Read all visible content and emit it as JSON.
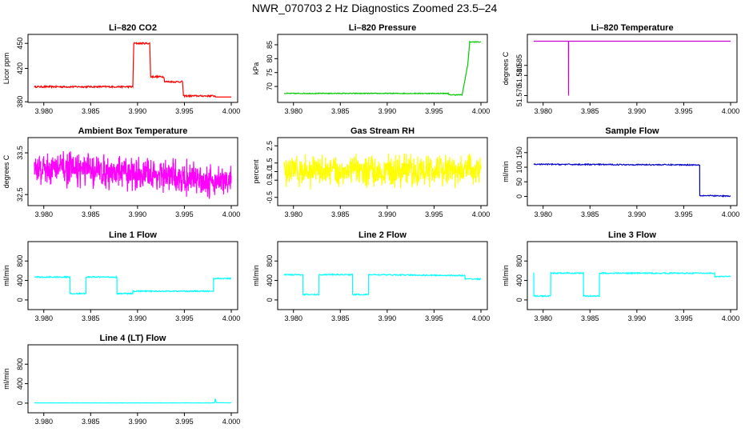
{
  "title": "NWR_070703  2 Hz Diagnostics Zoomed 23.5–24",
  "chart_data": [
    {
      "id": "co2",
      "type": "line",
      "title": "Li–820 CO2",
      "ylabel": "Licor ppm",
      "color": "#ff0000",
      "xlim": [
        3.979,
        4.0
      ],
      "ylim": [
        385,
        455
      ],
      "xticks": [
        "3.980",
        "3.985",
        "3.990",
        "3.995",
        "4.000"
      ],
      "yticks": [
        "380",
        "420",
        "450"
      ],
      "x": [
        3.979,
        3.9895,
        3.9896,
        3.9913,
        3.9914,
        3.9928,
        3.9929,
        3.9948,
        3.9949,
        3.9983,
        3.9984,
        4.0
      ],
      "y": [
        398,
        398,
        450,
        450,
        410,
        410,
        404,
        404,
        387,
        387,
        383,
        383
      ],
      "noise": 1.0
    },
    {
      "id": "pressure",
      "type": "line",
      "title": "Li–820 Pressure",
      "ylabel": "kPa",
      "color": "#00cc00",
      "xlim": [
        3.979,
        4.0
      ],
      "ylim": [
        66,
        87
      ],
      "xticks": [
        "3.980",
        "3.985",
        "3.990",
        "3.995",
        "4.000"
      ],
      "yticks": [
        "70",
        "75",
        "80",
        "85"
      ],
      "x": [
        3.979,
        3.9965,
        3.9966,
        3.998,
        3.9986,
        3.9988,
        4.0
      ],
      "y": [
        67.5,
        67.5,
        67,
        67,
        78,
        86,
        86
      ],
      "noise": 0.15
    },
    {
      "id": "temperature",
      "type": "line",
      "title": "Li–820 Temperature",
      "ylabel": "degrees C",
      "color": "#cc00cc",
      "xlim": [
        3.979,
        4.0
      ],
      "ylim": [
        51.569,
        51.598
      ],
      "xticks": [
        "3.980",
        "3.985",
        "3.990",
        "3.995",
        "4.000"
      ],
      "yticks": [
        "51.570",
        "51.580",
        "51.585"
      ],
      "x": [
        3.979,
        3.9827,
        3.98271,
        3.98272,
        4.0
      ],
      "y": [
        51.597,
        51.597,
        51.57,
        51.597,
        51.597
      ],
      "noise": 0
    },
    {
      "id": "ambient",
      "type": "line",
      "title": "Ambient Box Temperature",
      "ylabel": "degrees C",
      "color": "#ff00ff",
      "xlim": [
        3.979,
        4.0
      ],
      "ylim": [
        32.35,
        33.75
      ],
      "xticks": [
        "3.980",
        "3.985",
        "3.990",
        "3.995",
        "4.000"
      ],
      "yticks": [
        "32.5",
        "33.5"
      ],
      "x": [
        3.979,
        3.99,
        4.0
      ],
      "y": [
        33.15,
        33.0,
        32.8
      ],
      "noise": 0.35,
      "dense": true
    },
    {
      "id": "rh",
      "type": "line",
      "title": "Gas Stream RH",
      "ylabel": "percent",
      "color": "#ffff00",
      "xlim": [
        3.979,
        4.0
      ],
      "ylim": [
        -0.7,
        2.7
      ],
      "xticks": [
        "3.980",
        "3.985",
        "3.990",
        "3.995",
        "4.000"
      ],
      "yticks": [
        "-0.5",
        "0.5",
        "1.0",
        "1.5",
        "2.5"
      ],
      "x": [
        3.979,
        4.0
      ],
      "y": [
        1.05,
        1.05
      ],
      "noise": 0.8,
      "dense": true
    },
    {
      "id": "sample",
      "type": "line",
      "title": "Sample Flow",
      "ylabel": "ml/min",
      "color": "#0000cc",
      "xlim": [
        3.979,
        4.0
      ],
      "ylim": [
        -15,
        185
      ],
      "xticks": [
        "3.980",
        "3.985",
        "3.990",
        "3.995",
        "4.000"
      ],
      "yticks": [
        "0",
        "50",
        "100",
        "150"
      ],
      "x": [
        3.979,
        3.9967,
        3.99671,
        4.0
      ],
      "y": [
        110,
        108,
        3,
        1
      ],
      "noise": 2
    },
    {
      "id": "line1",
      "type": "line",
      "title": "Line 1 Flow",
      "ylabel": "ml/min",
      "color": "#00ffff",
      "xlim": [
        3.979,
        4.0
      ],
      "ylim": [
        -100,
        1100
      ],
      "xticks": [
        "3.980",
        "3.985",
        "3.990",
        "3.995",
        "4.000"
      ],
      "yticks": [
        "0",
        "400",
        "800"
      ],
      "x": [
        3.979,
        3.9828,
        3.98281,
        3.9845,
        3.98451,
        3.9878,
        3.98781,
        3.9895,
        3.98951,
        3.9981,
        3.99811,
        4.0
      ],
      "y": [
        470,
        470,
        130,
        130,
        470,
        470,
        130,
        130,
        180,
        180,
        440,
        440
      ],
      "noise": 12
    },
    {
      "id": "line2",
      "type": "line",
      "title": "Line 2 Flow",
      "ylabel": "ml/min",
      "color": "#00ffff",
      "xlim": [
        3.979,
        4.0
      ],
      "ylim": [
        -100,
        1100
      ],
      "xticks": [
        "3.980",
        "3.985",
        "3.990",
        "3.995",
        "4.000"
      ],
      "yticks": [
        "0",
        "400",
        "800"
      ],
      "x": [
        3.979,
        3.981,
        3.98101,
        3.9827,
        3.98271,
        3.9863,
        3.98631,
        3.988,
        3.98801,
        3.9983,
        3.99831,
        4.0
      ],
      "y": [
        520,
        520,
        110,
        110,
        520,
        520,
        110,
        110,
        520,
        500,
        430,
        430
      ],
      "noise": 12
    },
    {
      "id": "line3",
      "type": "line",
      "title": "Line 3 Flow",
      "ylabel": "ml/min",
      "color": "#00ffff",
      "xlim": [
        3.979,
        4.0
      ],
      "ylim": [
        -100,
        1100
      ],
      "xticks": [
        "3.980",
        "3.985",
        "3.990",
        "3.995",
        "4.000"
      ],
      "yticks": [
        "0",
        "400",
        "800"
      ],
      "x": [
        3.979,
        3.97901,
        3.9808,
        3.98081,
        3.9843,
        3.98431,
        3.986,
        3.98601,
        3.9983,
        3.99831,
        4.0
      ],
      "y": [
        560,
        80,
        80,
        550,
        550,
        80,
        80,
        550,
        550,
        480,
        480
      ],
      "noise": 12
    },
    {
      "id": "line4",
      "type": "line",
      "title": "Line 4 (LT) Flow",
      "ylabel": "ml/min",
      "color": "#00ffff",
      "xlim": [
        3.979,
        4.0
      ],
      "ylim": [
        -100,
        1100
      ],
      "xticks": [
        "3.980",
        "3.985",
        "3.990",
        "3.995",
        "4.000"
      ],
      "yticks": [
        "0",
        "400",
        "800"
      ],
      "x": [
        3.979,
        3.9982,
        3.9983,
        3.9984,
        4.0
      ],
      "y": [
        5,
        5,
        90,
        10,
        5
      ],
      "noise": 2
    }
  ]
}
